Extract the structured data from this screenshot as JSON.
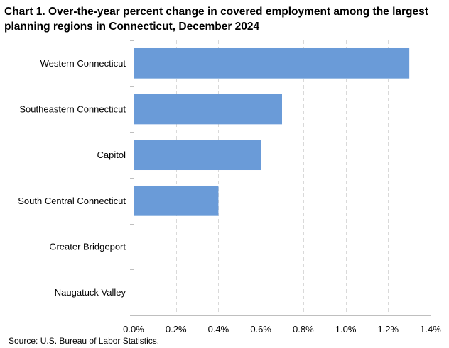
{
  "chart_data": {
    "type": "bar",
    "orientation": "horizontal",
    "title": "Chart 1. Over-the-year percent change in covered employment among the largest planning regions in Connecticut, December 2024",
    "categories": [
      "Western Connecticut",
      "Southeastern Connecticut",
      "Capitol",
      "South Central Connecticut",
      "Greater Bridgeport",
      "Naugatuck Valley"
    ],
    "values": [
      1.3,
      0.7,
      0.6,
      0.4,
      0.0,
      0.0
    ],
    "xlim": [
      0,
      1.4
    ],
    "xticks": [
      0,
      0.2,
      0.4,
      0.6,
      0.8,
      1.0,
      1.2,
      1.4
    ],
    "xtick_labels": [
      "0.0%",
      "0.2%",
      "0.4%",
      "0.6%",
      "0.8%",
      "1.0%",
      "1.2%",
      "1.4%"
    ],
    "xlabel": "",
    "ylabel": "",
    "grid": "vertical dashed",
    "legend": "none",
    "bar_color": "#6a9bd8",
    "grid_color": "#d9d9d9",
    "axis_color": "#bfbfbf"
  },
  "source": "Source:  U.S. Bureau of Labor Statistics."
}
